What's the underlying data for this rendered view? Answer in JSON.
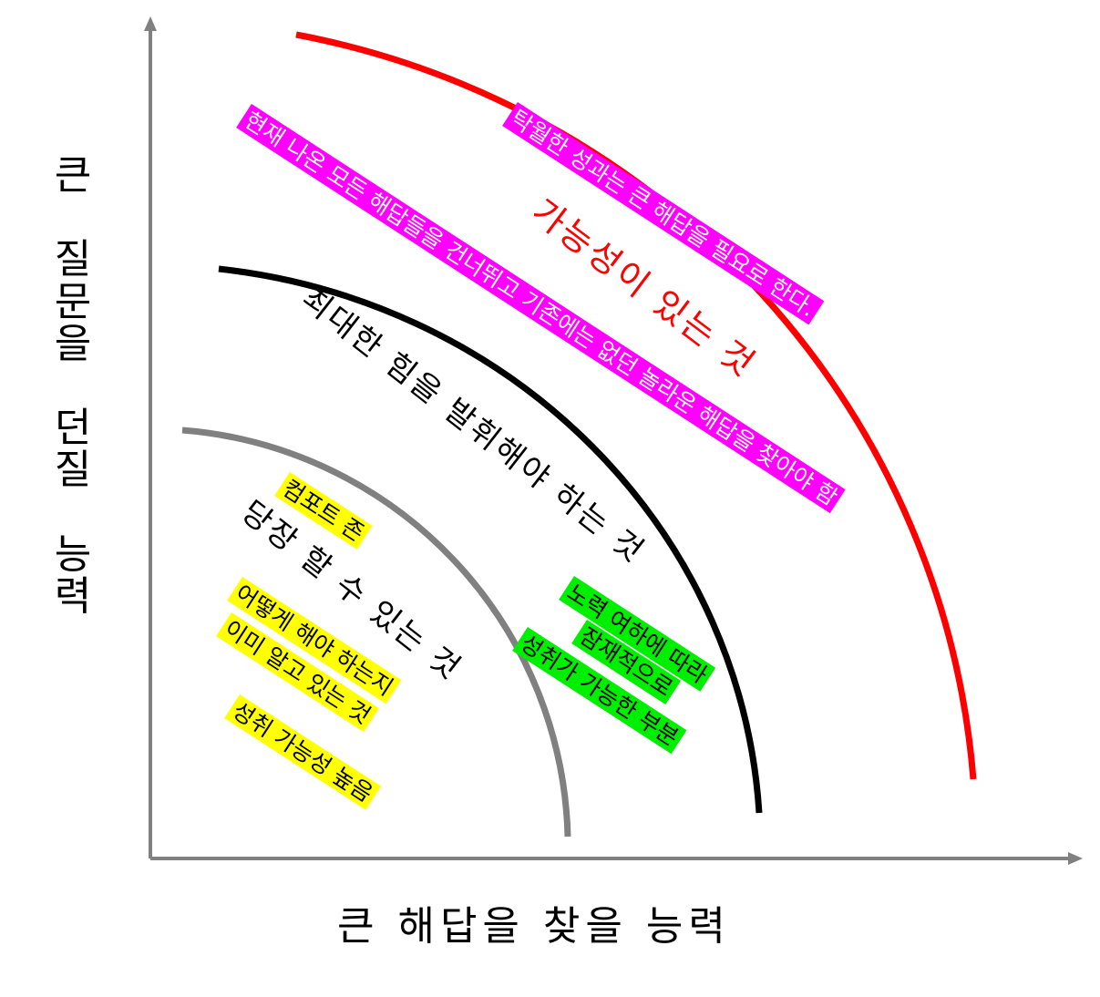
{
  "axes": {
    "y_label_chars": [
      "큰",
      "",
      "질",
      "문",
      "을",
      "",
      "던",
      "질",
      "",
      "능",
      "력"
    ],
    "y_label": "큰 질문을 던질 능력",
    "x_label": "큰 해답을 찾을 능력",
    "color": "#808080"
  },
  "zones": {
    "outer": {
      "label": "가능성이 있는 것",
      "color": "#ff0000"
    },
    "middle": {
      "label": "최대한 힘을 발휘해야 하는 것",
      "color": "#000000"
    },
    "inner": {
      "label": "당장 할 수 있는 것",
      "color": "#808080"
    }
  },
  "notes": {
    "magenta": [
      "탁월한 성과는 큰 해답을 필요로 한다.",
      "현재 나온 모든 해답들을 건너뛰고 기존에는 없던 놀라운 해답을 찾아야 함"
    ],
    "green": [
      "노력 여하에 따라",
      "잠재적으로",
      "성취가 가능한 부분"
    ],
    "yellow": [
      "컴포트 존",
      "어떻게 해야 하는지",
      "이미 알고 있는 것",
      "성취 가능성 높음"
    ]
  },
  "colors": {
    "magenta": "#ff00ff",
    "yellow": "#ffff00",
    "green": "#00ee00"
  }
}
